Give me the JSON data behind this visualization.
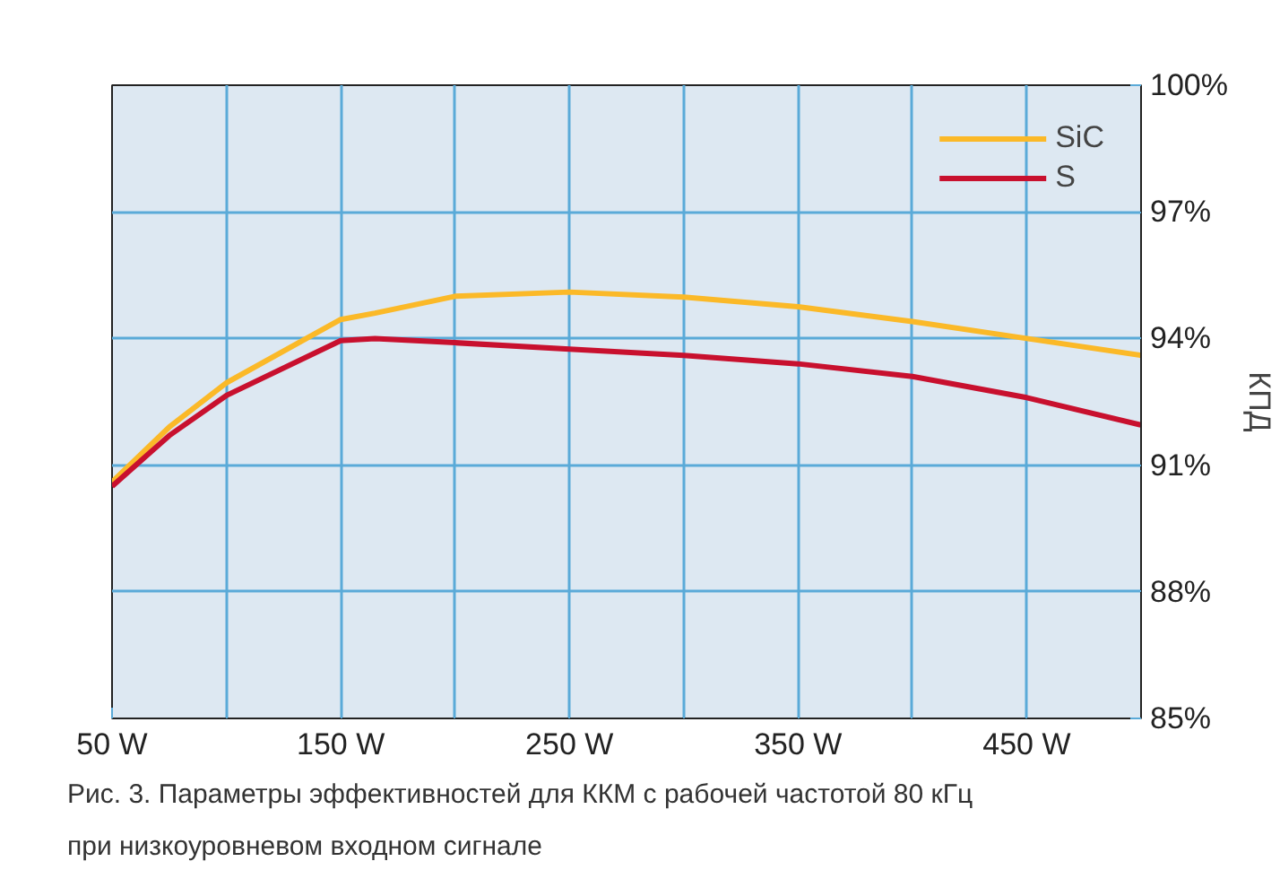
{
  "chart_data": {
    "type": "line",
    "ylabel": "КПД",
    "x": [
      50,
      75,
      100,
      150,
      165,
      200,
      250,
      300,
      350,
      400,
      450,
      500
    ],
    "series": [
      {
        "name": "SiC",
        "color": "#fbb928",
        "values": [
          90.6,
          91.9,
          92.95,
          94.45,
          94.6,
          95.0,
          95.1,
          94.98,
          94.75,
          94.4,
          94.0,
          93.6
        ]
      },
      {
        "name": "S",
        "color": "#c8102e",
        "values": [
          90.5,
          91.7,
          92.65,
          93.95,
          94.0,
          93.9,
          93.75,
          93.6,
          93.4,
          93.1,
          92.6,
          91.95
        ]
      }
    ],
    "xlim": [
      50,
      500
    ],
    "xticks": [
      {
        "value": 50,
        "label": "50 W"
      },
      {
        "value": 100,
        "label": null
      },
      {
        "value": 150,
        "label": "150 W"
      },
      {
        "value": 200,
        "label": null
      },
      {
        "value": 250,
        "label": "250 W"
      },
      {
        "value": 300,
        "label": null
      },
      {
        "value": 350,
        "label": "350 W"
      },
      {
        "value": 400,
        "label": null
      },
      {
        "value": 450,
        "label": "450 W"
      },
      {
        "value": 500,
        "label": null
      }
    ],
    "ylim": [
      85,
      100
    ],
    "yticks": [
      {
        "value": 85,
        "label": "85%"
      },
      {
        "value": 88,
        "label": "88%"
      },
      {
        "value": 91,
        "label": "91%"
      },
      {
        "value": 94,
        "label": "94%"
      },
      {
        "value": 97,
        "label": "97%"
      },
      {
        "value": 100,
        "label": "100%"
      }
    ],
    "grid": true,
    "legend": "top right",
    "marker": "none",
    "line_style": "solid",
    "annotations": [
      "Рис. 3. Параметры эффективностей для ККМ с рабочей частотой 80 кГц при низкоуровневом входном сигнале"
    ]
  }
}
